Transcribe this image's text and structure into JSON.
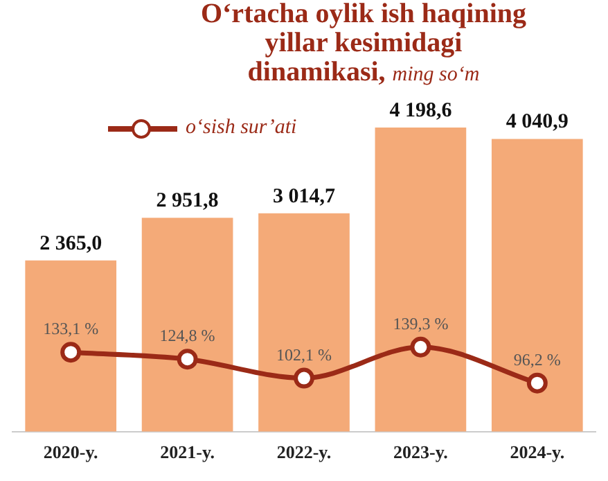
{
  "chart_data": {
    "type": "bar",
    "title": "O‘rtacha oylik ish haqining yillar kesimidagi dinamikasi,",
    "subtitle": "ming so‘m",
    "categories": [
      "2020-y.",
      "2021-y.",
      "2022-y.",
      "2023-y.",
      "2024-y."
    ],
    "series": [
      {
        "color": "#f4aa78",
        "values": [
          2365.0,
          2951.8,
          3014.7,
          4198.6,
          4040.9
        ],
        "value_labels": [
          "2 365,0",
          "2 951,8",
          "3 014,7",
          "4 198,6",
          "4 040,9"
        ]
      },
      {
        "type": "line",
        "name": "o‘sish sur’ati",
        "axis": "y2",
        "color": "#9b2a17",
        "marker": "circle",
        "values": [
          133.1,
          124.8,
          102.1,
          139.3,
          96.2
        ],
        "value_labels": [
          "133,1 %",
          "124,8 %",
          "102,1 %",
          "139,3 %",
          "96,2 %"
        ]
      }
    ],
    "legend": "top left",
    "grid": false
  }
}
